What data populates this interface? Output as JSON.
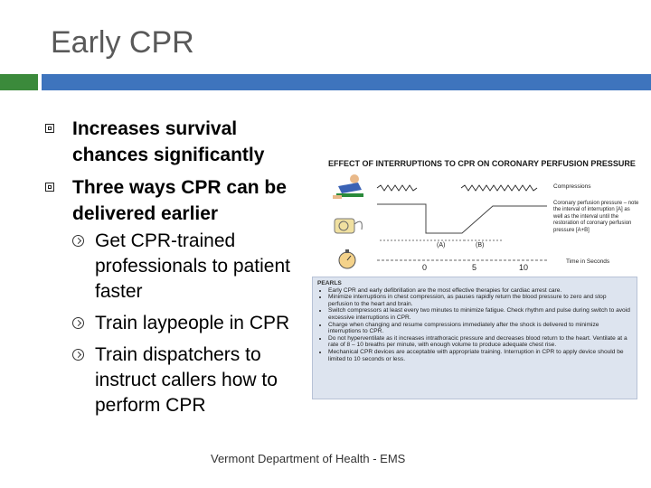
{
  "slide": {
    "title": "Early CPR",
    "bullets": [
      {
        "text": "Increases survival chances significantly"
      },
      {
        "text": "Three ways CPR can be delivered earlier"
      }
    ],
    "sub_bullets": [
      {
        "text": "Get CPR-trained professionals to patient faster"
      },
      {
        "text": "Train laypeople in CPR"
      },
      {
        "text": "Train dispatchers to instruct callers how to perform CPR"
      }
    ],
    "footer": "Vermont Department of Health - EMS"
  },
  "figure": {
    "title": "EFFECT OF INTERRUPTIONS TO CPR ON CORONARY PERFUSION PRESSURE",
    "compressions_label": "Compressions",
    "cpp_label": "Coronary perfusion pressure – note the interval of interruption [A] as well as the interval until the restoration of coronary perfusion pressure [A+B]",
    "interval_a": "(A)",
    "interval_b": "(B)",
    "time_ticks": [
      "0",
      "5",
      "10"
    ],
    "time_label": "Time in Seconds",
    "pearls_heading": "PEARLS",
    "pearls": [
      "Early CPR and early defibrillation are the most effective therapies for cardiac arrest care.",
      "Minimize interruptions in chest compression, as pauses rapidly return the blood pressure to zero and stop perfusion to the heart and brain.",
      "Switch compressors at least every two minutes to minimize fatigue. Check rhythm and pulse during switch to avoid excessive interruptions in CPR.",
      "Charge when changing and resume compressions immediately after the shock is delivered to minimize interruptions to CPR.",
      "Do not hyperventilate as it increases intrathoracic pressure and decreases blood return to the heart. Ventilate at a rate of 8 – 10 breaths per minute, with enough volume to produce adequate chest rise.",
      "Mechanical CPR devices are acceptable with appropriate training. Interruption in CPR to apply device should be limited to 10 seconds or less."
    ],
    "colors": {
      "green_bar": "#3b8a3b",
      "blue_bar": "#3e74bd",
      "pearls_bg": "#dde4ef"
    }
  }
}
